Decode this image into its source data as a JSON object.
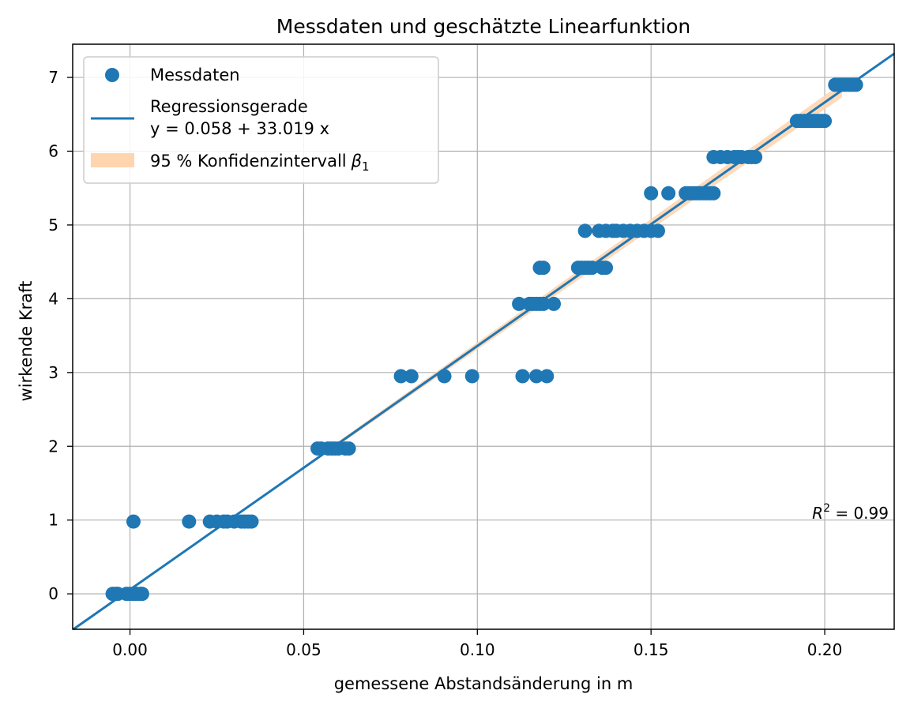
{
  "chart_data": {
    "type": "scatter",
    "title": "Messdaten und geschätzte Linearfunktion",
    "xlabel": "gemessene Abstandsänderung in m",
    "ylabel": "wirkende Kraft",
    "xlim": [
      -0.0165,
      0.22
    ],
    "ylim": [
      -0.48,
      7.45
    ],
    "grid": true,
    "xticks": [
      0.0,
      0.05,
      0.1,
      0.15,
      0.2
    ],
    "xtick_labels": [
      "0.00",
      "0.05",
      "0.10",
      "0.15",
      "0.20"
    ],
    "yticks": [
      0,
      1,
      2,
      3,
      4,
      5,
      6,
      7
    ],
    "ytick_labels": [
      "0",
      "1",
      "2",
      "3",
      "4",
      "5",
      "6",
      "7"
    ],
    "legend": {
      "position": "upper-left",
      "entries": [
        {
          "kind": "marker",
          "label": "Messdaten"
        },
        {
          "kind": "line",
          "label_lines": [
            "Regressionsgerade",
            "y = 0.058 + 33.019 x"
          ]
        },
        {
          "kind": "band",
          "label": "95 % Konfidenzintervall",
          "label_math": "β",
          "label_sub": "1"
        }
      ]
    },
    "annotation": {
      "prefix": "R",
      "sup": "2",
      "suffix": " = 0.99"
    },
    "regression": {
      "intercept": 0.058,
      "slope": 33.019
    },
    "confidence_band": {
      "x_start": 0.06,
      "x_end": 0.205,
      "slope_low": 32.55,
      "slope_high": 33.49
    },
    "series": [
      {
        "name": "Messdaten",
        "points": [
          [
            -0.005,
            0.0
          ],
          [
            -0.004,
            0.0
          ],
          [
            -0.0035,
            0.0
          ],
          [
            -0.001,
            0.0
          ],
          [
            0.0,
            0.0
          ],
          [
            0.001,
            0.0
          ],
          [
            0.002,
            0.0
          ],
          [
            0.003,
            0.0
          ],
          [
            0.0035,
            0.0
          ],
          [
            0.0015,
            0.0
          ],
          [
            0.001,
            0.98
          ],
          [
            0.017,
            0.98
          ],
          [
            0.023,
            0.98
          ],
          [
            0.025,
            0.98
          ],
          [
            0.027,
            0.98
          ],
          [
            0.028,
            0.98
          ],
          [
            0.03,
            0.98
          ],
          [
            0.032,
            0.98
          ],
          [
            0.033,
            0.98
          ],
          [
            0.034,
            0.98
          ],
          [
            0.035,
            0.98
          ],
          [
            0.054,
            1.97
          ],
          [
            0.055,
            1.97
          ],
          [
            0.057,
            1.97
          ],
          [
            0.058,
            1.97
          ],
          [
            0.059,
            1.97
          ],
          [
            0.06,
            1.97
          ],
          [
            0.062,
            1.97
          ],
          [
            0.063,
            1.97
          ],
          [
            0.078,
            2.95
          ],
          [
            0.081,
            2.95
          ],
          [
            0.0905,
            2.95
          ],
          [
            0.0985,
            2.95
          ],
          [
            0.113,
            2.95
          ],
          [
            0.117,
            2.95
          ],
          [
            0.12,
            2.95
          ],
          [
            0.112,
            3.93
          ],
          [
            0.115,
            3.93
          ],
          [
            0.116,
            3.93
          ],
          [
            0.117,
            3.93
          ],
          [
            0.118,
            3.93
          ],
          [
            0.119,
            3.93
          ],
          [
            0.122,
            3.93
          ],
          [
            0.118,
            4.42
          ],
          [
            0.119,
            4.42
          ],
          [
            0.129,
            4.42
          ],
          [
            0.13,
            4.42
          ],
          [
            0.131,
            4.42
          ],
          [
            0.132,
            4.42
          ],
          [
            0.133,
            4.42
          ],
          [
            0.136,
            4.42
          ],
          [
            0.137,
            4.42
          ],
          [
            0.131,
            4.92
          ],
          [
            0.135,
            4.92
          ],
          [
            0.137,
            4.92
          ],
          [
            0.139,
            4.92
          ],
          [
            0.14,
            4.92
          ],
          [
            0.142,
            4.92
          ],
          [
            0.144,
            4.92
          ],
          [
            0.146,
            4.92
          ],
          [
            0.148,
            4.92
          ],
          [
            0.15,
            4.92
          ],
          [
            0.152,
            4.92
          ],
          [
            0.15,
            5.43
          ],
          [
            0.155,
            5.43
          ],
          [
            0.16,
            5.43
          ],
          [
            0.161,
            5.43
          ],
          [
            0.162,
            5.43
          ],
          [
            0.163,
            5.43
          ],
          [
            0.164,
            5.43
          ],
          [
            0.165,
            5.43
          ],
          [
            0.166,
            5.43
          ],
          [
            0.167,
            5.43
          ],
          [
            0.168,
            5.43
          ],
          [
            0.168,
            5.92
          ],
          [
            0.17,
            5.92
          ],
          [
            0.172,
            5.92
          ],
          [
            0.174,
            5.92
          ],
          [
            0.175,
            5.92
          ],
          [
            0.176,
            5.92
          ],
          [
            0.178,
            5.92
          ],
          [
            0.179,
            5.92
          ],
          [
            0.18,
            5.92
          ],
          [
            0.192,
            6.41
          ],
          [
            0.193,
            6.41
          ],
          [
            0.194,
            6.41
          ],
          [
            0.195,
            6.41
          ],
          [
            0.196,
            6.41
          ],
          [
            0.197,
            6.41
          ],
          [
            0.198,
            6.41
          ],
          [
            0.199,
            6.41
          ],
          [
            0.2,
            6.41
          ],
          [
            0.203,
            6.9
          ],
          [
            0.204,
            6.9
          ],
          [
            0.205,
            6.9
          ],
          [
            0.206,
            6.9
          ],
          [
            0.207,
            6.9
          ],
          [
            0.208,
            6.9
          ],
          [
            0.209,
            6.9
          ]
        ]
      }
    ],
    "colors": {
      "points": "#1f77b4",
      "line": "#1f77b4",
      "band": "#ffd5b0",
      "grid": "#b0b0b0"
    }
  }
}
